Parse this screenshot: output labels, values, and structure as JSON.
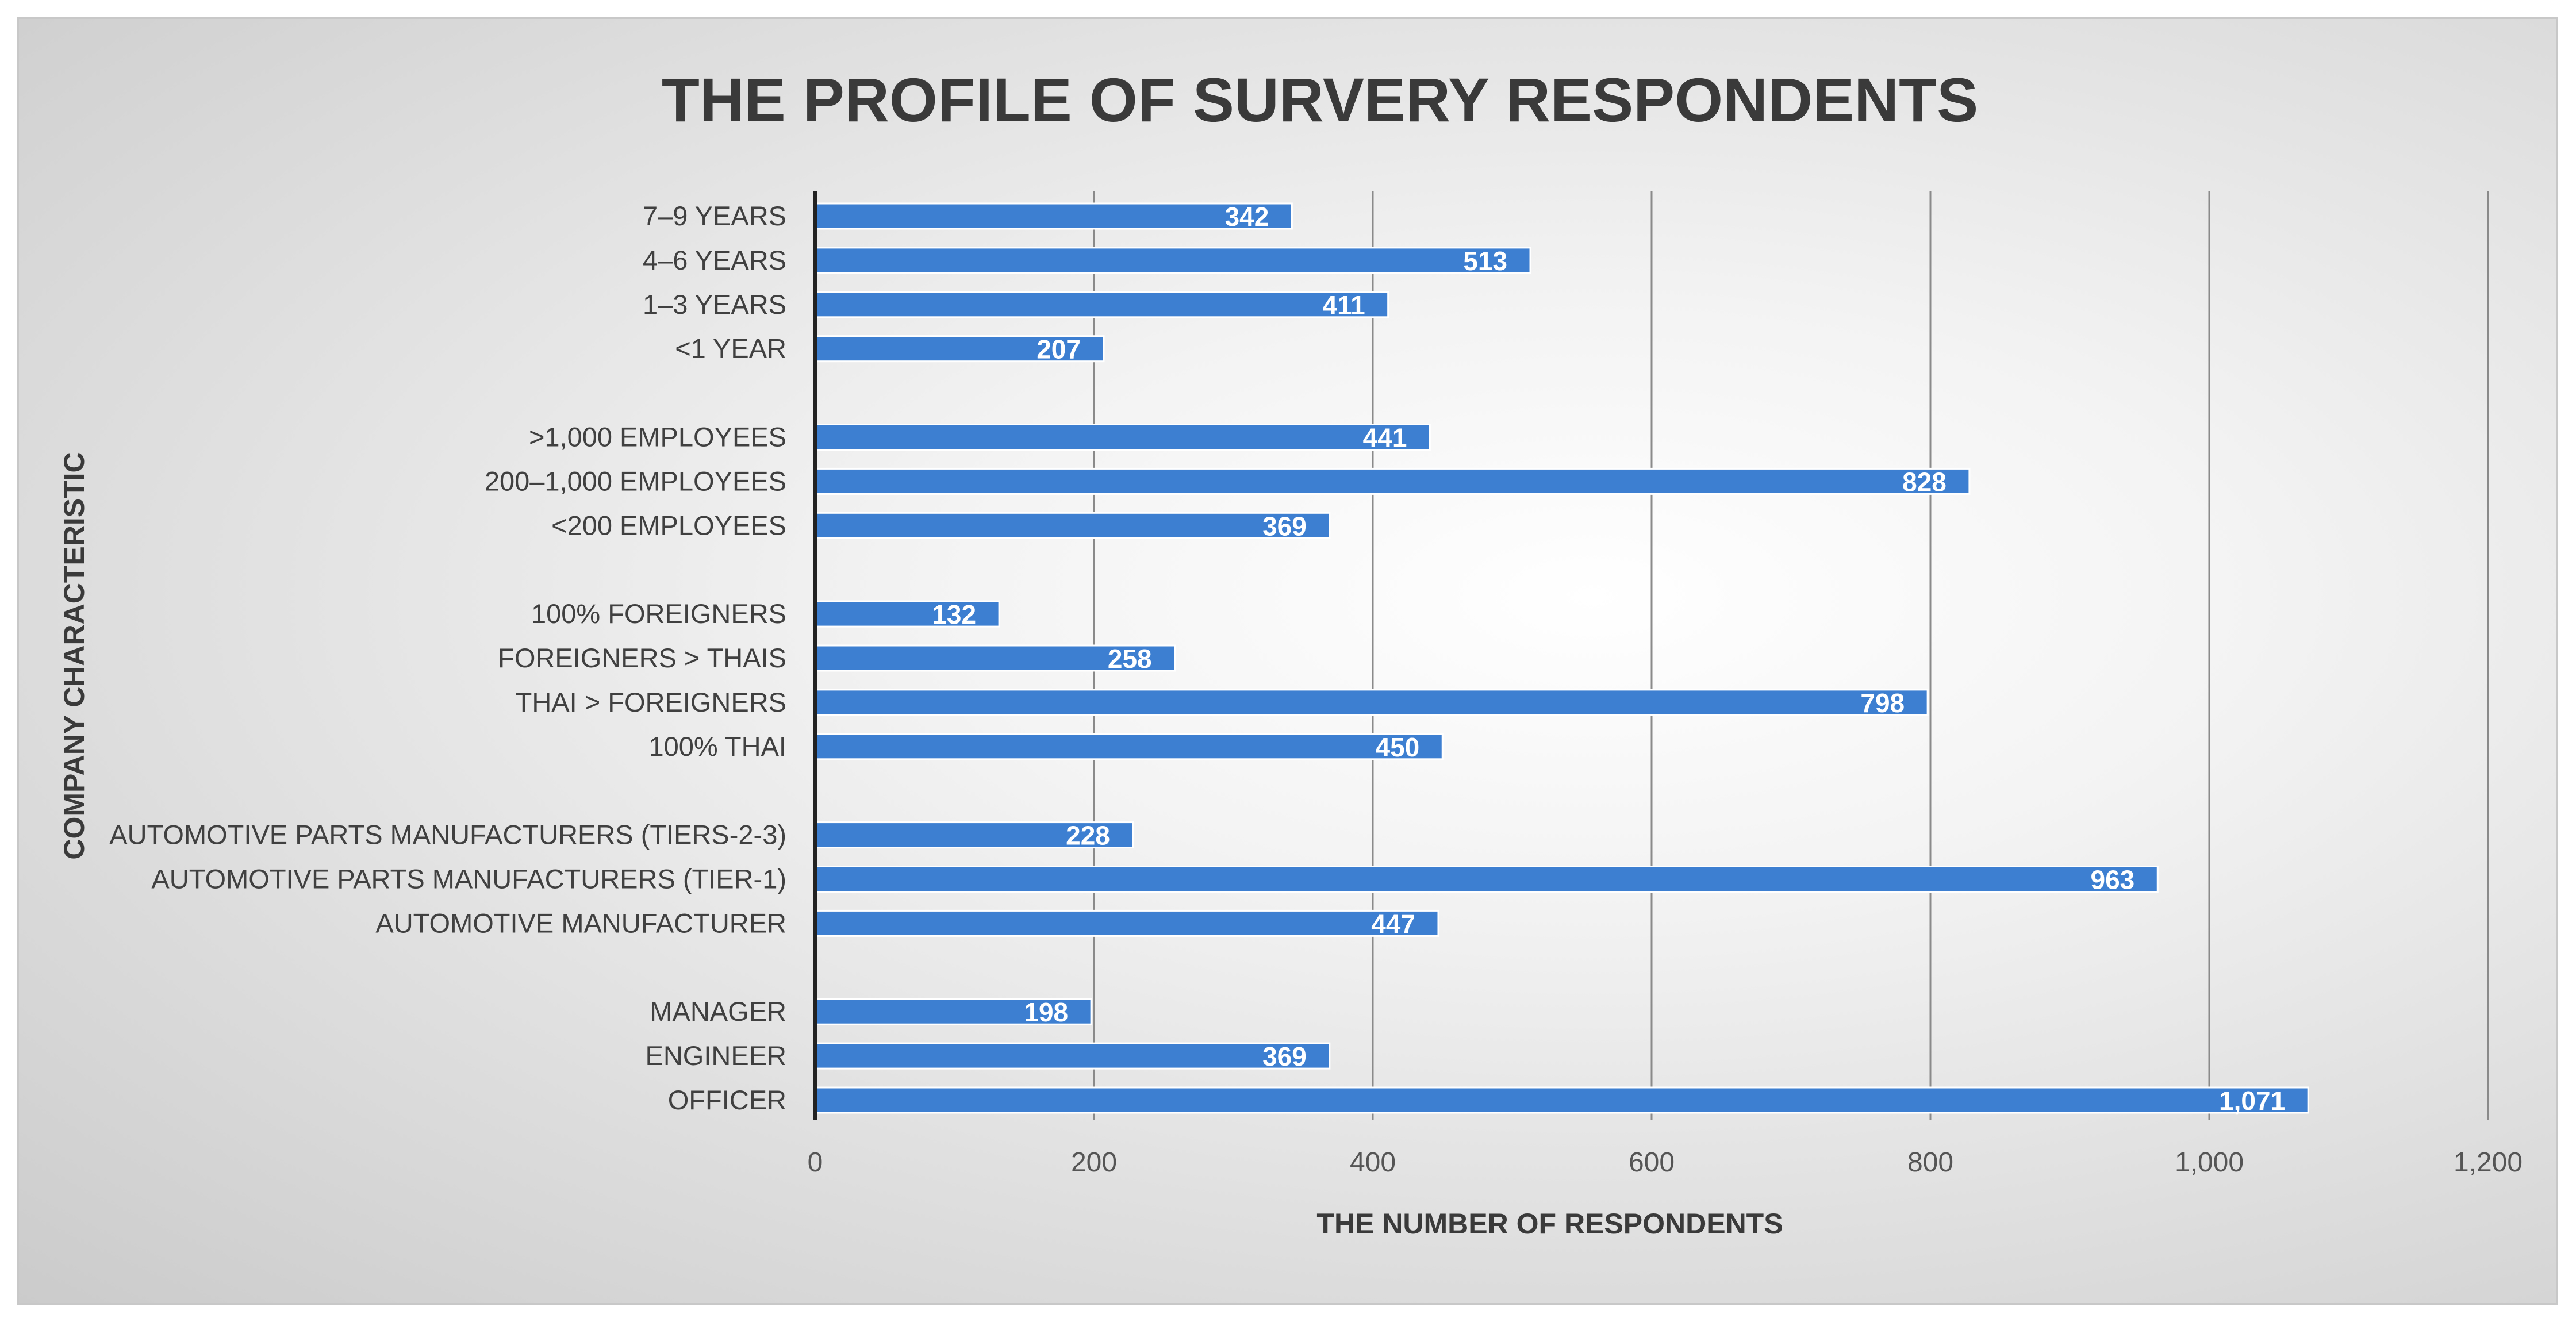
{
  "chart_data": {
    "type": "bar",
    "orientation": "horizontal",
    "title": "THE PROFILE OF SURVERY RESPONDENTS",
    "xlabel": "THE NUMBER OF RESPONDENTS",
    "ylabel": "COMPANY CHARACTERISTIC",
    "xlim": [
      0,
      1200
    ],
    "xticks": [
      0,
      200,
      400,
      600,
      800,
      1000,
      1200
    ],
    "xtick_labels": [
      "0",
      "200",
      "400",
      "600",
      "800",
      "1,000",
      "1,200"
    ],
    "grid": true,
    "bar_color": "#3d7fd1",
    "groups": [
      {
        "items": [
          {
            "label": "7–9 YEARS",
            "value": 342,
            "value_label": "342"
          },
          {
            "label": "4–6 YEARS",
            "value": 513,
            "value_label": "513"
          },
          {
            "label": "1–3 YEARS",
            "value": 411,
            "value_label": "411"
          },
          {
            "label": "<1 YEAR",
            "value": 207,
            "value_label": "207"
          }
        ]
      },
      {
        "items": [
          {
            "label": ">1,000 EMPLOYEES",
            "value": 441,
            "value_label": "441"
          },
          {
            "label": "200–1,000 EMPLOYEES",
            "value": 828,
            "value_label": "828"
          },
          {
            "label": "<200 EMPLOYEES",
            "value": 369,
            "value_label": "369"
          }
        ]
      },
      {
        "items": [
          {
            "label": "100% FOREIGNERS",
            "value": 132,
            "value_label": "132"
          },
          {
            "label": "FOREIGNERS > THAIS",
            "value": 258,
            "value_label": "258"
          },
          {
            "label": "THAI > FOREIGNERS",
            "value": 798,
            "value_label": "798"
          },
          {
            "label": "100% THAI",
            "value": 450,
            "value_label": "450"
          }
        ]
      },
      {
        "items": [
          {
            "label": "AUTOMOTIVE PARTS MANUFACTURERS (TIERS-2-3)",
            "value": 228,
            "value_label": "228"
          },
          {
            "label": "AUTOMOTIVE PARTS MANUFACTURERS (TIER-1)",
            "value": 963,
            "value_label": "963"
          },
          {
            "label": "AUTOMOTIVE MANUFACTURER",
            "value": 447,
            "value_label": "447"
          }
        ]
      },
      {
        "items": [
          {
            "label": "MANAGER",
            "value": 198,
            "value_label": "198"
          },
          {
            "label": "ENGINEER",
            "value": 369,
            "value_label": "369"
          },
          {
            "label": "OFFICER",
            "value": 1071,
            "value_label": "1,071"
          }
        ]
      }
    ]
  }
}
